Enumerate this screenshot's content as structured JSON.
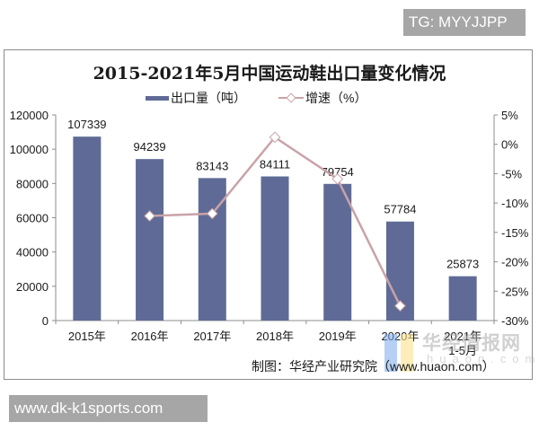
{
  "badges": {
    "top_right": "TG: MYYJJPP",
    "bottom_left": "www.dk-k1sports.com"
  },
  "source": "制图：华经产业研究院（www.huaon.com）",
  "watermark": {
    "text": "华经情报网",
    "sub": "huaon.com"
  },
  "colors": {
    "bar": "#5f6b96",
    "line": "#c9a2a8",
    "axis": "#8c8c8c",
    "text": "#1a1a1a"
  },
  "chart_data": {
    "type": "bar+line",
    "title": "2015-2021年5月中国运动鞋出口量变化情况",
    "categories": [
      "2015年",
      "2016年",
      "2017年",
      "2018年",
      "2019年",
      "2020年",
      "2021年\n1-5月"
    ],
    "category_lines": [
      [
        "2015年"
      ],
      [
        "2016年"
      ],
      [
        "2017年"
      ],
      [
        "2018年"
      ],
      [
        "2019年"
      ],
      [
        "2020年"
      ],
      [
        "2021年",
        "1-5月"
      ]
    ],
    "series": [
      {
        "name": "出口量（吨）",
        "type": "bar",
        "axis": "left",
        "values": [
          107339,
          94239,
          83143,
          84111,
          79754,
          57784,
          25873
        ],
        "data_labels": [
          "107339",
          "94239",
          "83143",
          "84111",
          "79754",
          "57784",
          "25873"
        ]
      },
      {
        "name": "增速（%）",
        "type": "line",
        "axis": "right",
        "values": [
          null,
          -12.2,
          -11.8,
          1.2,
          -5.9,
          -27.5,
          null
        ]
      }
    ],
    "y_left": {
      "min": 0,
      "max": 120000,
      "ticks": [
        0,
        20000,
        40000,
        60000,
        80000,
        100000,
        120000
      ],
      "tick_labels": [
        "0",
        "20000",
        "40000",
        "60000",
        "80000",
        "100000",
        "120000"
      ]
    },
    "y_right": {
      "min": -30,
      "max": 5,
      "ticks": [
        5,
        0,
        -5,
        -10,
        -15,
        -20,
        -25,
        -30
      ],
      "tick_labels": [
        "5%",
        "0%",
        "-5%",
        "-10%",
        "-15%",
        "-20%",
        "-25%",
        "-30%"
      ]
    },
    "xlabel": "",
    "ylabel": "",
    "grid": false,
    "legend_position": "top"
  }
}
